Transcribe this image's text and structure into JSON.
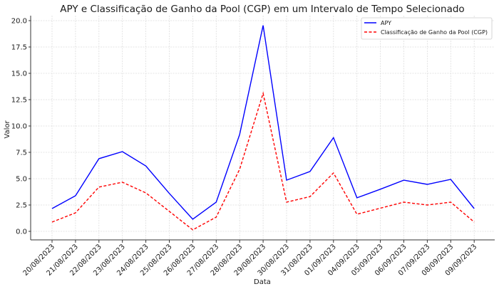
{
  "chart_data": {
    "type": "line",
    "title": "APY e Classificação de Ganho da Pool (CGP) em um Intervalo de Tempo Selecionado",
    "xlabel": "Data",
    "ylabel": "Valor",
    "ylim": [
      -0.9,
      20.5
    ],
    "yticks": [
      "0.0",
      "2.5",
      "5.0",
      "7.5",
      "10.0",
      "12.5",
      "15.0",
      "17.5",
      "20.0"
    ],
    "grid": true,
    "legend_position": "upper right",
    "categories": [
      "20/08/2023",
      "21/08/2023",
      "22/08/2023",
      "23/08/2023",
      "24/08/2023",
      "25/08/2023",
      "26/08/2023",
      "27/08/2023",
      "28/08/2023",
      "29/08/2023",
      "30/08/2023",
      "31/08/2023",
      "01/09/2023",
      "04/09/2023",
      "05/09/2023",
      "06/09/2023",
      "07/09/2023",
      "08/09/2023",
      "09/09/2023"
    ],
    "series": [
      {
        "name": "APY",
        "color": "#0000ff",
        "style": "solid",
        "values": [
          2.16,
          3.38,
          6.9,
          7.57,
          6.2,
          3.6,
          1.15,
          2.77,
          9.2,
          19.55,
          4.86,
          5.68,
          8.9,
          3.18,
          4.0,
          4.86,
          4.46,
          4.93,
          2.16
        ]
      },
      {
        "name": "Classificação de Ganho da Pool (CGP)",
        "color": "#ff0000",
        "style": "dashed",
        "values": [
          0.88,
          1.76,
          4.2,
          4.66,
          3.65,
          1.9,
          0.14,
          1.35,
          5.9,
          13.1,
          2.77,
          3.3,
          5.54,
          1.62,
          2.2,
          2.77,
          2.5,
          2.77,
          0.88
        ]
      }
    ]
  }
}
